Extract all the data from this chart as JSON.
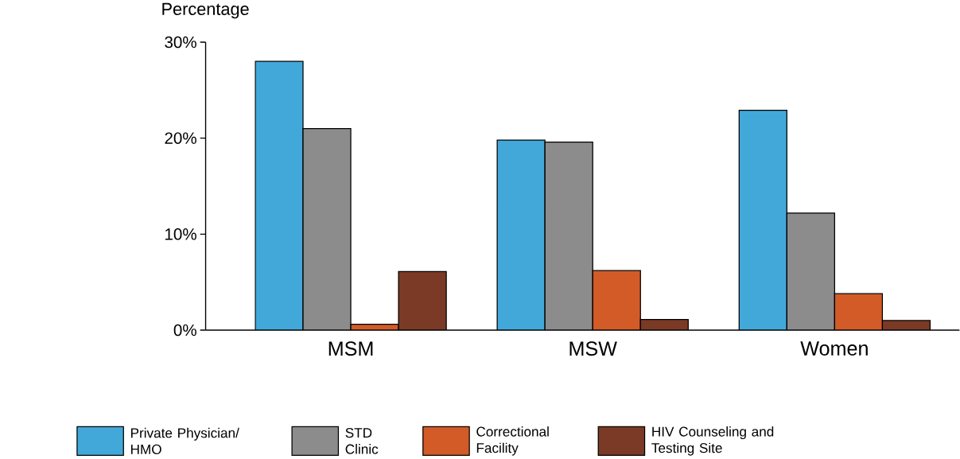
{
  "chart_data": {
    "type": "bar",
    "ylabel": "Percentage",
    "categories": [
      "MSM",
      "MSW",
      "Women"
    ],
    "series": [
      {
        "name": "Private Physician/ HMO",
        "color": "#42a8da",
        "values": [
          28.0,
          19.8,
          22.9
        ]
      },
      {
        "name": "STD Clinic",
        "color": "#8c8c8c",
        "values": [
          21.0,
          19.6,
          12.2
        ]
      },
      {
        "name": "Correctional Facility",
        "color": "#d25b28",
        "values": [
          0.6,
          6.2,
          3.8
        ]
      },
      {
        "name": "HIV Counseling and Testing Site",
        "color": "#7b3a25",
        "values": [
          6.1,
          1.1,
          1.0
        ]
      }
    ],
    "ylim": [
      0,
      30
    ],
    "yticks": [
      {
        "value": 0,
        "label": "0%"
      },
      {
        "value": 10,
        "label": "10%"
      },
      {
        "value": 20,
        "label": "20%"
      },
      {
        "value": 30,
        "label": "30%"
      }
    ],
    "grid": false,
    "legend": "bottom"
  }
}
